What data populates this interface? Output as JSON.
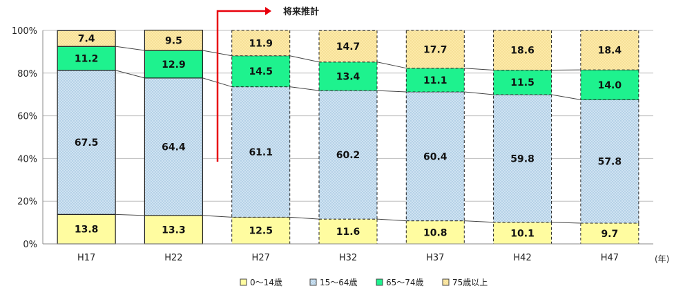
{
  "chart_data": {
    "type": "bar",
    "stacked": true,
    "percent_scale": true,
    "categories": [
      "H17",
      "H22",
      "H27",
      "H32",
      "H37",
      "H42",
      "H47"
    ],
    "projected_from_index": 2,
    "series": [
      {
        "name": "0～14歳",
        "values": [
          13.8,
          13.3,
          12.5,
          11.6,
          10.8,
          10.1,
          9.7
        ],
        "color": "#fffca0",
        "pattern": "solid"
      },
      {
        "name": "15～64歳",
        "values": [
          67.5,
          64.4,
          61.1,
          60.2,
          60.4,
          59.8,
          57.8
        ],
        "color": "#c5ddef",
        "pattern": "dots"
      },
      {
        "name": "65～74歳",
        "values": [
          11.2,
          12.9,
          14.5,
          13.4,
          11.1,
          11.5,
          14.0
        ],
        "color": "#1ef28e",
        "pattern": "solid"
      },
      {
        "name": "75歳以上",
        "values": [
          7.4,
          9.5,
          11.9,
          14.7,
          17.7,
          18.6,
          18.4
        ],
        "color": "#fde59a",
        "pattern": "dots"
      }
    ],
    "ylim": [
      0,
      100
    ],
    "yticks": [
      "0%",
      "20%",
      "40%",
      "60%",
      "80%",
      "100%"
    ],
    "xlabel": "(年)",
    "ylabel": "",
    "title": "",
    "annotation": "将来推計",
    "annotation_color": "#e8000b",
    "grid": true,
    "legend_position": "bottom"
  }
}
